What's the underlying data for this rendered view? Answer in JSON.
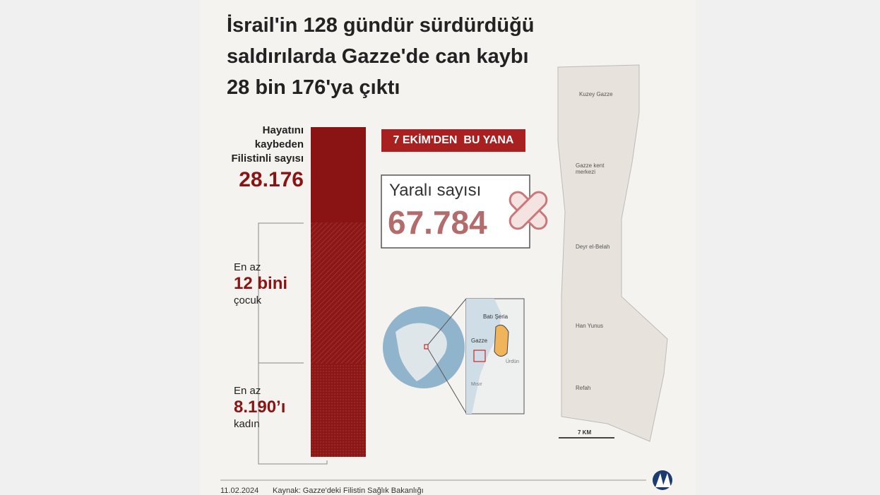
{
  "header": {
    "title_lines": [
      "İsrail'in 128 gündür sürdürdüğü",
      "saldırılarda Gazze'de can kaybı",
      "28 bin 176'ya çıktı"
    ]
  },
  "killed": {
    "label_lines": [
      "Hayatını",
      "kaybeden",
      "Filistinli sayısı"
    ],
    "value": "28.176"
  },
  "children": {
    "prefix": "En az",
    "value": "12 bini",
    "suffix": "çocuk"
  },
  "women": {
    "prefix": "En az",
    "value": "8.190’ı",
    "suffix": "kadın"
  },
  "badge": "7 EKİM'DEN  BU YANA",
  "wounded": {
    "label": "Yaralı sayısı",
    "value": "67.784"
  },
  "inset_map": {
    "labels": [
      "Batı Şeria",
      "Gazze",
      "Ürdün",
      "Mısır"
    ]
  },
  "gaza_map": {
    "regions": [
      "Kuzey Gazze",
      "Gazze kent merkezi",
      "Deyr el-Belah",
      "Han Yunus",
      "Refah"
    ],
    "scale": "7 KM"
  },
  "footer": {
    "date": "11.02.2024",
    "source": "Kaynak: Gazze'deki Filistin Sağlık Bakanlığı"
  }
}
